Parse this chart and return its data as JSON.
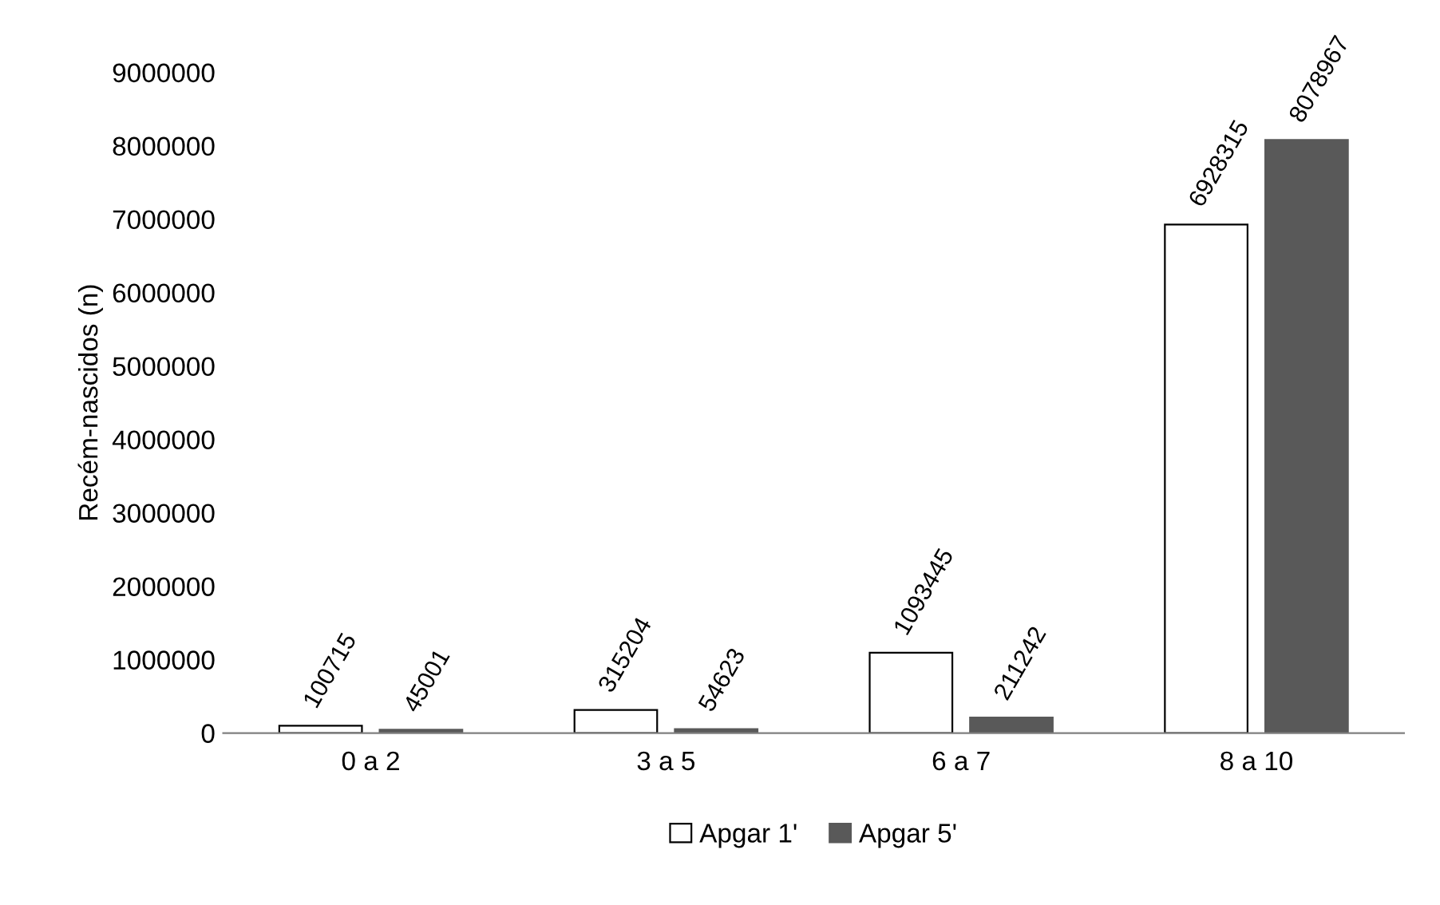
{
  "chart_data": {
    "type": "bar",
    "ylabel": "Recém-nascidos (n)",
    "categories": [
      "0 a 2",
      "3 a 5",
      "6 a 7",
      "8 a 10"
    ],
    "series": [
      {
        "name": "Apgar 1'",
        "color": "#ffffff",
        "values": [
          100715,
          315204,
          1093445,
          6928315
        ]
      },
      {
        "name": "Apgar 5'",
        "color": "#595959",
        "values": [
          45001,
          54623,
          211242,
          8078967
        ]
      }
    ],
    "ylim": [
      0,
      9000000
    ],
    "yticks": [
      0,
      1000000,
      2000000,
      3000000,
      4000000,
      5000000,
      6000000,
      7000000,
      8000000,
      9000000
    ],
    "grid": false,
    "legend": "bottom",
    "data_labels": true
  }
}
